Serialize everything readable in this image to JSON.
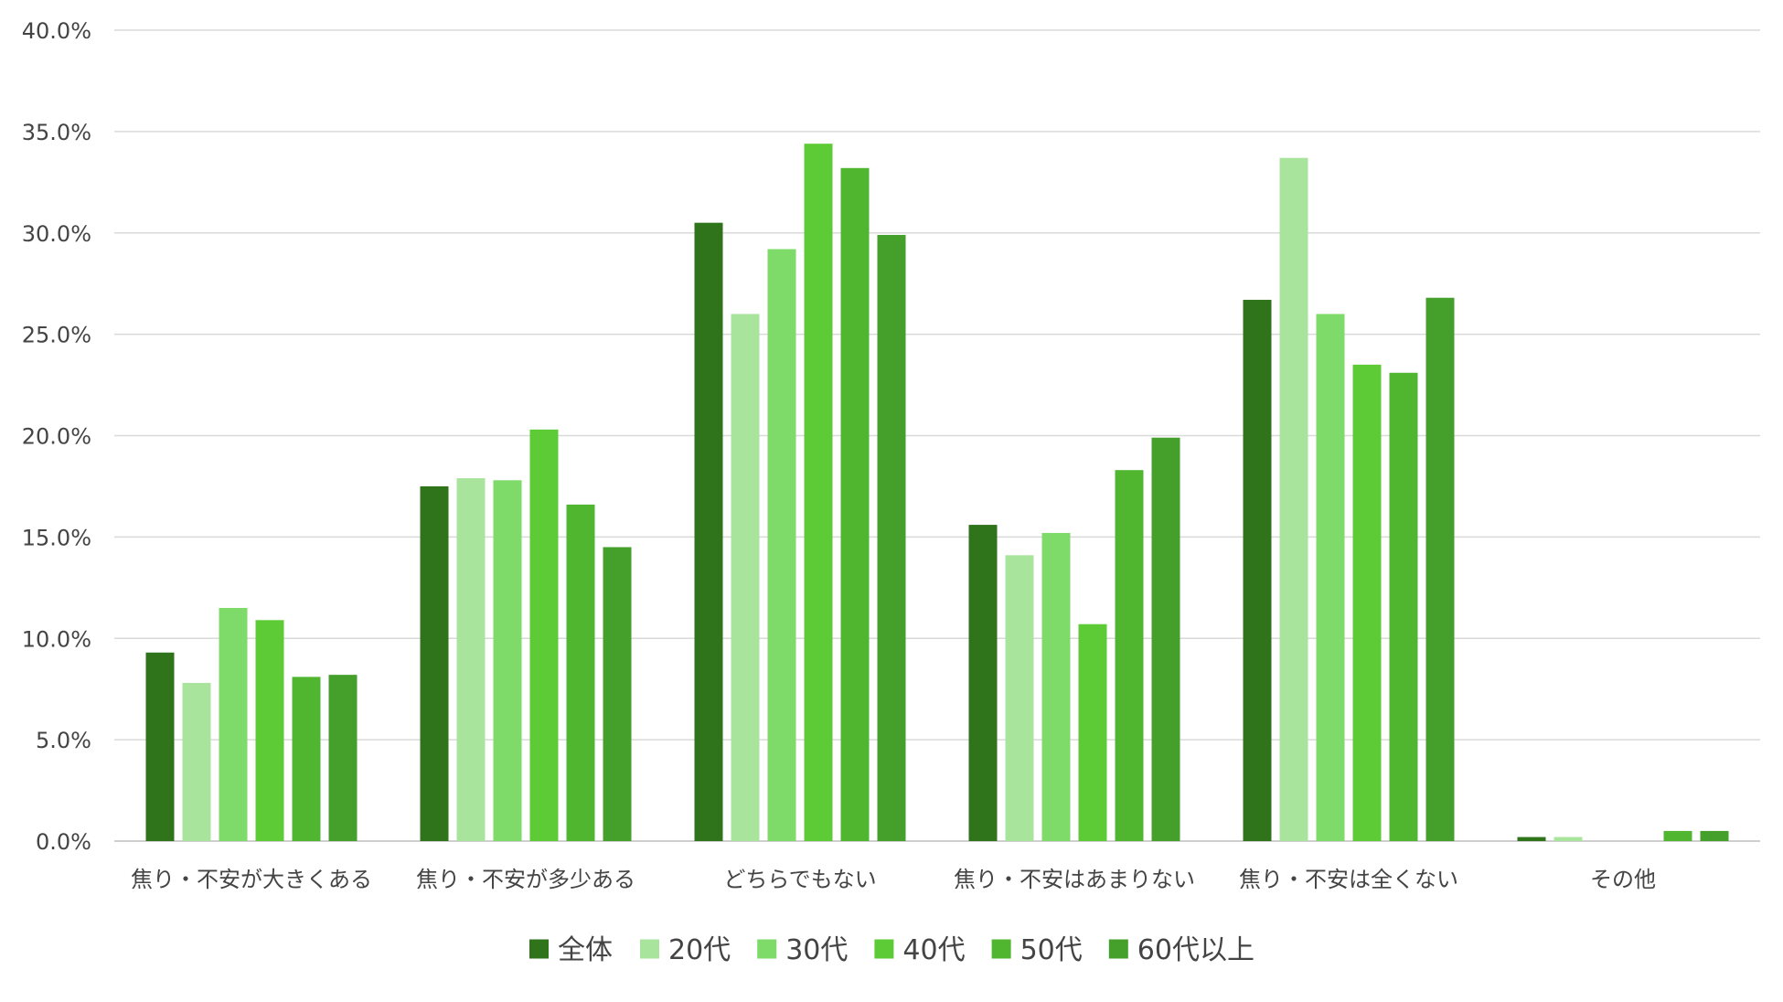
{
  "chart_data": {
    "type": "bar",
    "title": "",
    "xlabel": "",
    "ylabel": "",
    "ylim": [
      0,
      40
    ],
    "yticks": [
      "0.0%",
      "5.0%",
      "10.0%",
      "15.0%",
      "20.0%",
      "25.0%",
      "30.0%",
      "35.0%",
      "40.0%"
    ],
    "grid": true,
    "legend_position": "bottom",
    "categories": [
      "焦り・不安が大きくある",
      "焦り・不安が多少ある",
      "どちらでもない",
      "焦り・不安はあまりない",
      "焦り・不安は全くない",
      "その他"
    ],
    "series": [
      {
        "name": "全体",
        "color": "#2f731b",
        "values": [
          9.3,
          17.5,
          30.5,
          15.6,
          26.7,
          0.2
        ]
      },
      {
        "name": "20代",
        "color": "#a8e49b",
        "values": [
          7.8,
          17.9,
          26.0,
          14.1,
          33.7,
          0.2
        ]
      },
      {
        "name": "30代",
        "color": "#7edb6a",
        "values": [
          11.5,
          17.8,
          29.2,
          15.2,
          26.0,
          0.0
        ]
      },
      {
        "name": "40代",
        "color": "#5ccb36",
        "values": [
          10.9,
          20.3,
          34.4,
          10.7,
          23.5,
          0.0
        ]
      },
      {
        "name": "50代",
        "color": "#50b630",
        "values": [
          8.1,
          16.6,
          33.2,
          18.3,
          23.1,
          0.5
        ]
      },
      {
        "name": "60代以上",
        "color": "#449f2b",
        "values": [
          8.2,
          14.5,
          29.9,
          19.9,
          26.8,
          0.5
        ]
      }
    ]
  }
}
